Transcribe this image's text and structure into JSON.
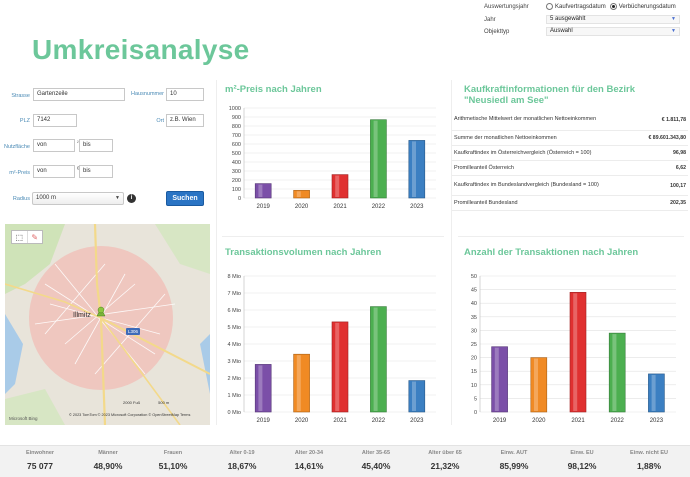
{
  "filters": {
    "auswertung_label": "Auswertungsjahr",
    "radio_kaufvertrag": "Kaufvertragsdatum",
    "radio_verbuecherung": "Verbücherungsdatum",
    "jahr_label": "Jahr",
    "jahr_value": "5 ausgewählt",
    "objekttyp_label": "Objekttyp",
    "objekttyp_value": "Auswahl"
  },
  "page": {
    "title": "Umkreisanalyse"
  },
  "form": {
    "strasse_label": "Strasse",
    "strasse_value": "Gartenzeile",
    "hausnummer_label": "Hausnummer",
    "hausnummer_value": "10",
    "plz_label": "PLZ",
    "plz_value": "7142",
    "ort_label": "Ort",
    "ort_placeholder": "z.B. Wien",
    "nutzflaeche_label": "Nutzfläche",
    "nutzflaeche_von": "von",
    "nutzflaeche_bis": "bis",
    "m2preis_label": "m²-Preis",
    "m2preis_von": "von",
    "m2preis_bis": "bis",
    "radius_label": "Radius",
    "radius_value": "1000 m",
    "search_label": "Suchen"
  },
  "map": {
    "town": "Illmitz",
    "road_badge": "L306",
    "scale_left": "2000 Fuß",
    "scale_right": "500 m",
    "credit": "© 2023 TomTom  © 2023 Microsoft Corporation  © OpenStreetMap  Terms",
    "logo": "Microsoft Bing",
    "tool_select": "⬚",
    "tool_draw": "✎"
  },
  "panels": {
    "preis_title": "m²-Preis nach Jahren",
    "kaufkraft_title_line1": "Kaufkraftinformationen für den Bezirk",
    "kaufkraft_title_line2": "\"Neusiedl am See\"",
    "transaktionsvolumen_title": "Transaktionsvolumen nach Jahren",
    "anzahl_title": "Anzahl der Transaktionen nach Jahren"
  },
  "kaufkraft": [
    {
      "label": "Arithmetische Mittelwert der monatlichen Nettoeinkommen",
      "value": "€ 1.811,78"
    },
    {
      "label": "Summe der monatlichen Nettoeinkommen",
      "value": "€ 89.601.343,80"
    },
    {
      "label": "Kaufkraftindex im Österreichvergleich (Österreich = 100)",
      "value": "96,98"
    },
    {
      "label": "Promilleanteil Österreich",
      "value": "6,62"
    },
    {
      "label": "Kaufkraftindex im Bundeslandvergleich (Bundesland = 100)",
      "value": "100,17"
    },
    {
      "label": "Promilleanteil Bundesland",
      "value": "202,35"
    }
  ],
  "colors": {
    "accent": "#6cc79a",
    "bars": [
      "#7b4fa8",
      "#f08a24",
      "#e03030",
      "#4caf50",
      "#3b7fc2"
    ]
  },
  "chart_data": [
    {
      "type": "bar",
      "title": "m²-Preis nach Jahren",
      "categories": [
        "2019",
        "2020",
        "2021",
        "2022",
        "2023"
      ],
      "values": [
        160,
        85,
        260,
        870,
        640
      ],
      "ylim": [
        0,
        1000
      ],
      "yticks": [
        "0",
        "100",
        "200",
        "300",
        "400",
        "500",
        "600",
        "700",
        "800",
        "900",
        "1000"
      ],
      "grid": true
    },
    {
      "type": "bar",
      "title": "Transaktionsvolumen nach Jahren",
      "categories": [
        "2019",
        "2020",
        "2021",
        "2022",
        "2023"
      ],
      "values": [
        2.8,
        3.4,
        5.3,
        6.2,
        1.85
      ],
      "ylim": [
        0,
        8
      ],
      "yticks": [
        "0 Mio",
        "1 Mio",
        "2 Mio",
        "3 Mio",
        "4 Mio",
        "5 Mio",
        "6 Mio",
        "7 Mio",
        "8 Mio"
      ],
      "grid": true
    },
    {
      "type": "bar",
      "title": "Anzahl der Transaktionen nach Jahren",
      "categories": [
        "2019",
        "2020",
        "2021",
        "2022",
        "2023"
      ],
      "values": [
        24,
        20,
        44,
        29,
        14
      ],
      "ylim": [
        0,
        50
      ],
      "yticks": [
        "0",
        "5",
        "10",
        "15",
        "20",
        "25",
        "30",
        "35",
        "40",
        "45",
        "50"
      ],
      "grid": true
    }
  ],
  "stats": [
    {
      "label": "Einwohner",
      "value": "75 077"
    },
    {
      "label": "Männer",
      "value": "48,90%"
    },
    {
      "label": "Frauen",
      "value": "51,10%"
    },
    {
      "label": "Alter 0-19",
      "value": "18,67%"
    },
    {
      "label": "Alter 20-34",
      "value": "14,61%"
    },
    {
      "label": "Alter 35-65",
      "value": "45,40%"
    },
    {
      "label": "Alter über 65",
      "value": "21,32%"
    },
    {
      "label": "Einw. AUT",
      "value": "85,99%"
    },
    {
      "label": "Einw. EU",
      "value": "98,12%"
    },
    {
      "label": "Einw. nicht EU",
      "value": "1,88%"
    }
  ]
}
